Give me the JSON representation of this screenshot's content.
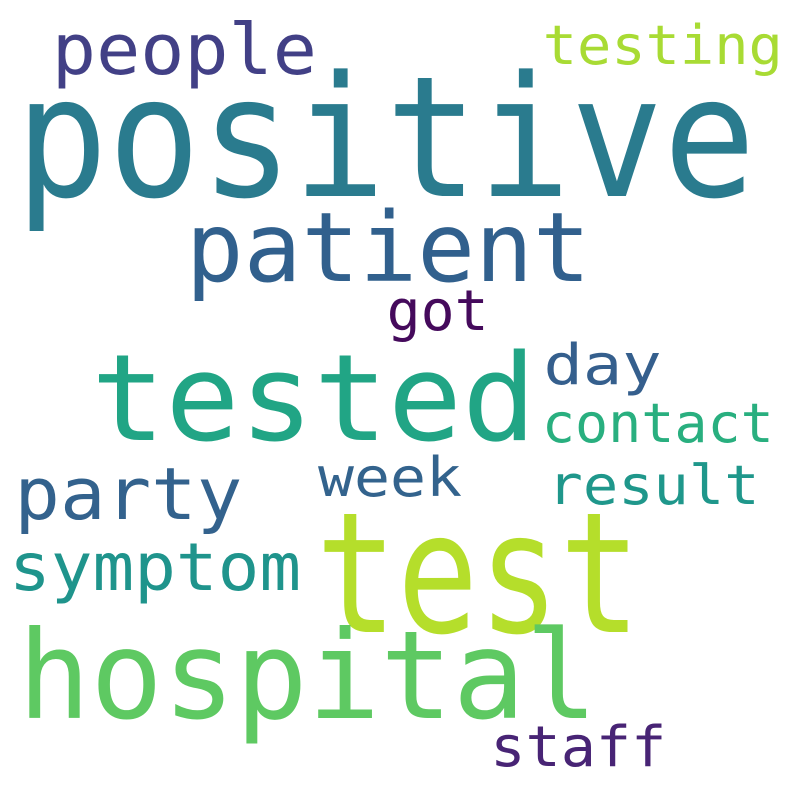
{
  "words": [
    {
      "text": "positive",
      "color": "#2a7b8e"
    },
    {
      "text": "test",
      "color": "#b5de2b"
    },
    {
      "text": "tested",
      "color": "#21a585"
    },
    {
      "text": "hospital",
      "color": "#5ec962"
    },
    {
      "text": "patient",
      "color": "#31608d"
    },
    {
      "text": "people",
      "color": "#424086"
    },
    {
      "text": "party",
      "color": "#33628d"
    },
    {
      "text": "symptom",
      "color": "#1f948c"
    },
    {
      "text": "testing",
      "color": "#a8db34"
    },
    {
      "text": "contact",
      "color": "#29af7f"
    },
    {
      "text": "day",
      "color": "#355f8d"
    },
    {
      "text": "result",
      "color": "#1f978b"
    },
    {
      "text": "week",
      "color": "#33638d"
    },
    {
      "text": "staff",
      "color": "#482475"
    },
    {
      "text": "got",
      "color": "#450a5c"
    }
  ]
}
